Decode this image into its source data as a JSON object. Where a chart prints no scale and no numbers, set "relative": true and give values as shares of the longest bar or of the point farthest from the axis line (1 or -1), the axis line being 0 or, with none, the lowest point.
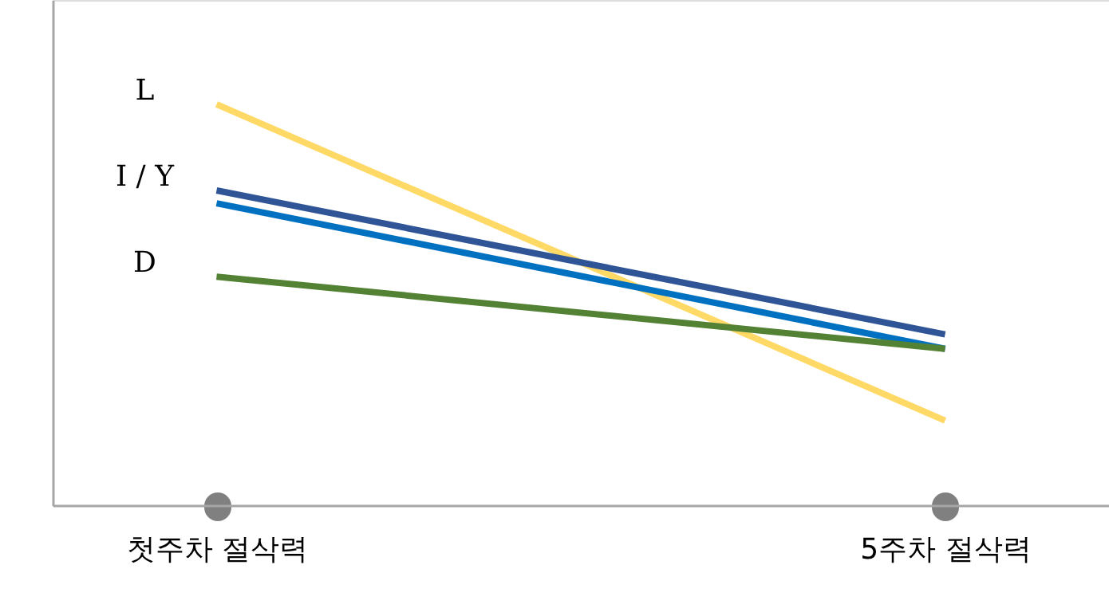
{
  "chart_data": {
    "type": "line",
    "relative": true,
    "categories": [
      "첫주차 절삭력",
      "5주차 절삭력"
    ],
    "series": [
      {
        "name": "L",
        "color": "#ffd966",
        "values": [
          1,
          0.211
        ]
      },
      {
        "name": "I / Y",
        "color": "#2f5597",
        "values": [
          0.785,
          0.426
        ]
      },
      {
        "color": "#0070c0",
        "values": [
          0.753,
          0.39
        ]
      },
      {
        "name": "D",
        "color": "#548235",
        "values": [
          0.57,
          0.39
        ]
      }
    ],
    "grid": false,
    "marker": "none",
    "line_style": "solid"
  }
}
